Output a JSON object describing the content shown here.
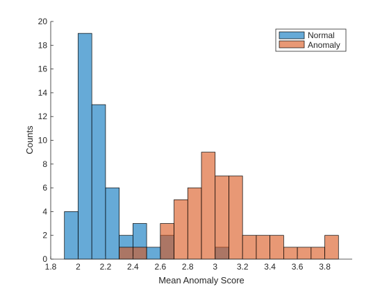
{
  "chart_data": {
    "type": "bar",
    "subtype": "histogram",
    "xlabel": "Mean Anomaly Score",
    "ylabel": "Counts",
    "xlim": [
      1.8,
      4.0
    ],
    "ylim": [
      0,
      20
    ],
    "bin_width": 0.1,
    "x_ticks": [
      1.8,
      2.0,
      2.2,
      2.4,
      2.6,
      2.8,
      3.0,
      3.2,
      3.4,
      3.6,
      3.8
    ],
    "x_tick_labels": [
      "1.8",
      "2",
      "2.2",
      "2.4",
      "2.6",
      "2.8",
      "3",
      "3.2",
      "3.4",
      "3.6",
      "3.8"
    ],
    "y_ticks": [
      0,
      2,
      4,
      6,
      8,
      10,
      12,
      14,
      16,
      18,
      20
    ],
    "y_tick_labels": [
      "0",
      "2",
      "4",
      "6",
      "8",
      "10",
      "12",
      "14",
      "16",
      "18",
      "20"
    ],
    "grid": false,
    "legend_position": "top-right",
    "series": [
      {
        "name": "Normal",
        "color": "#0072BD",
        "bins": [
          {
            "start": 1.9,
            "count": 4
          },
          {
            "start": 2.0,
            "count": 19
          },
          {
            "start": 2.1,
            "count": 13
          },
          {
            "start": 2.2,
            "count": 6
          },
          {
            "start": 2.3,
            "count": 2
          },
          {
            "start": 2.4,
            "count": 3
          },
          {
            "start": 2.5,
            "count": 1
          },
          {
            "start": 2.6,
            "count": 2
          },
          {
            "start": 3.0,
            "count": 1
          }
        ]
      },
      {
        "name": "Anomaly",
        "color": "#D95319",
        "bins": [
          {
            "start": 2.3,
            "count": 1
          },
          {
            "start": 2.4,
            "count": 1
          },
          {
            "start": 2.6,
            "count": 3
          },
          {
            "start": 2.7,
            "count": 5
          },
          {
            "start": 2.8,
            "count": 6
          },
          {
            "start": 2.9,
            "count": 9
          },
          {
            "start": 3.0,
            "count": 7
          },
          {
            "start": 3.1,
            "count": 7
          },
          {
            "start": 3.2,
            "count": 2
          },
          {
            "start": 3.3,
            "count": 2
          },
          {
            "start": 3.4,
            "count": 2
          },
          {
            "start": 3.5,
            "count": 1
          },
          {
            "start": 3.6,
            "count": 1
          },
          {
            "start": 3.7,
            "count": 1
          },
          {
            "start": 3.8,
            "count": 2
          }
        ]
      }
    ]
  }
}
